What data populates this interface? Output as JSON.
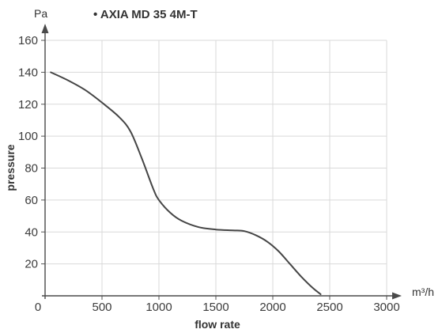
{
  "chart_data": {
    "type": "line",
    "title": "• AXIA MD 35 4M-T",
    "xlabel": "flow rate",
    "ylabel": "pressure",
    "x_unit": "m³/h",
    "y_unit": "Pa",
    "xlim": [
      0,
      3000
    ],
    "ylim": [
      0,
      160
    ],
    "x_ticks": [
      "0",
      "500",
      "1000",
      "1500",
      "2000",
      "2500",
      "3000"
    ],
    "y_ticks": [
      "20",
      "40",
      "60",
      "80",
      "100",
      "120",
      "140",
      "160"
    ],
    "grid": true,
    "color": "#454545",
    "series": [
      {
        "x": [
          50,
          200,
          350,
          500,
          650,
          750,
          850,
          950,
          1000,
          1100,
          1200,
          1350,
          1500,
          1650,
          1750,
          1850,
          1950,
          2050,
          2150,
          2250,
          2350,
          2420
        ],
        "y": [
          140,
          135,
          129,
          121,
          112,
          103,
          86,
          67,
          60,
          52,
          47,
          43,
          41.5,
          41,
          40.5,
          38,
          34,
          28,
          20,
          12,
          5,
          1
        ]
      }
    ]
  }
}
